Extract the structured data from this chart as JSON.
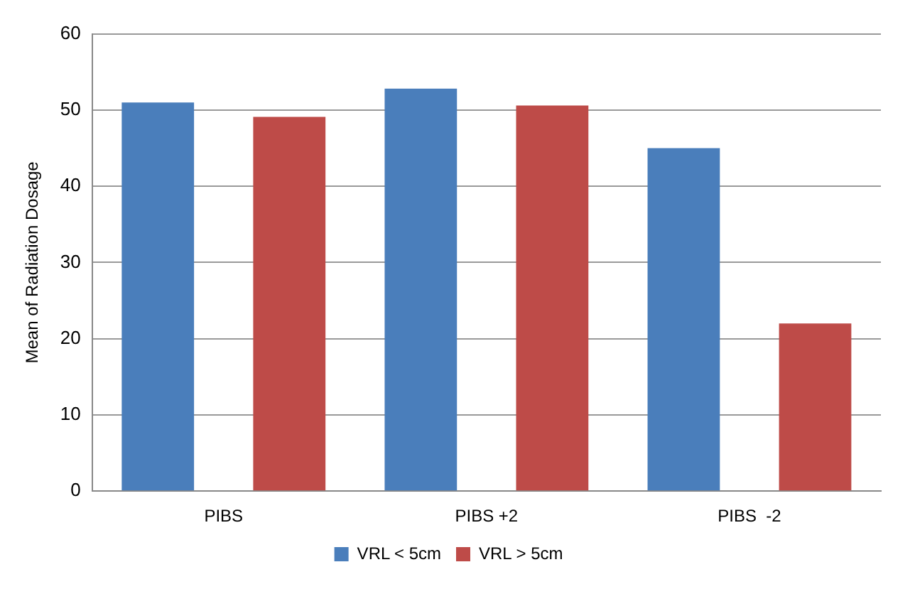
{
  "chart_data": {
    "type": "bar",
    "ylabel": "Mean of Radiation Dosage",
    "categories": [
      "PIBS",
      "PIBS +2",
      "PIBS  -2"
    ],
    "series": [
      {
        "name": "VRL < 5cm",
        "color": "#4a7ebb",
        "values": [
          51,
          52.8,
          45
        ]
      },
      {
        "name": "VRL > 5cm",
        "color": "#be4b48",
        "values": [
          49.1,
          50.6,
          22
        ]
      }
    ],
    "ylim": [
      0,
      60
    ],
    "yticks": [
      0,
      10,
      20,
      30,
      40,
      50,
      60
    ],
    "grid": "y",
    "legend": "bottom"
  }
}
